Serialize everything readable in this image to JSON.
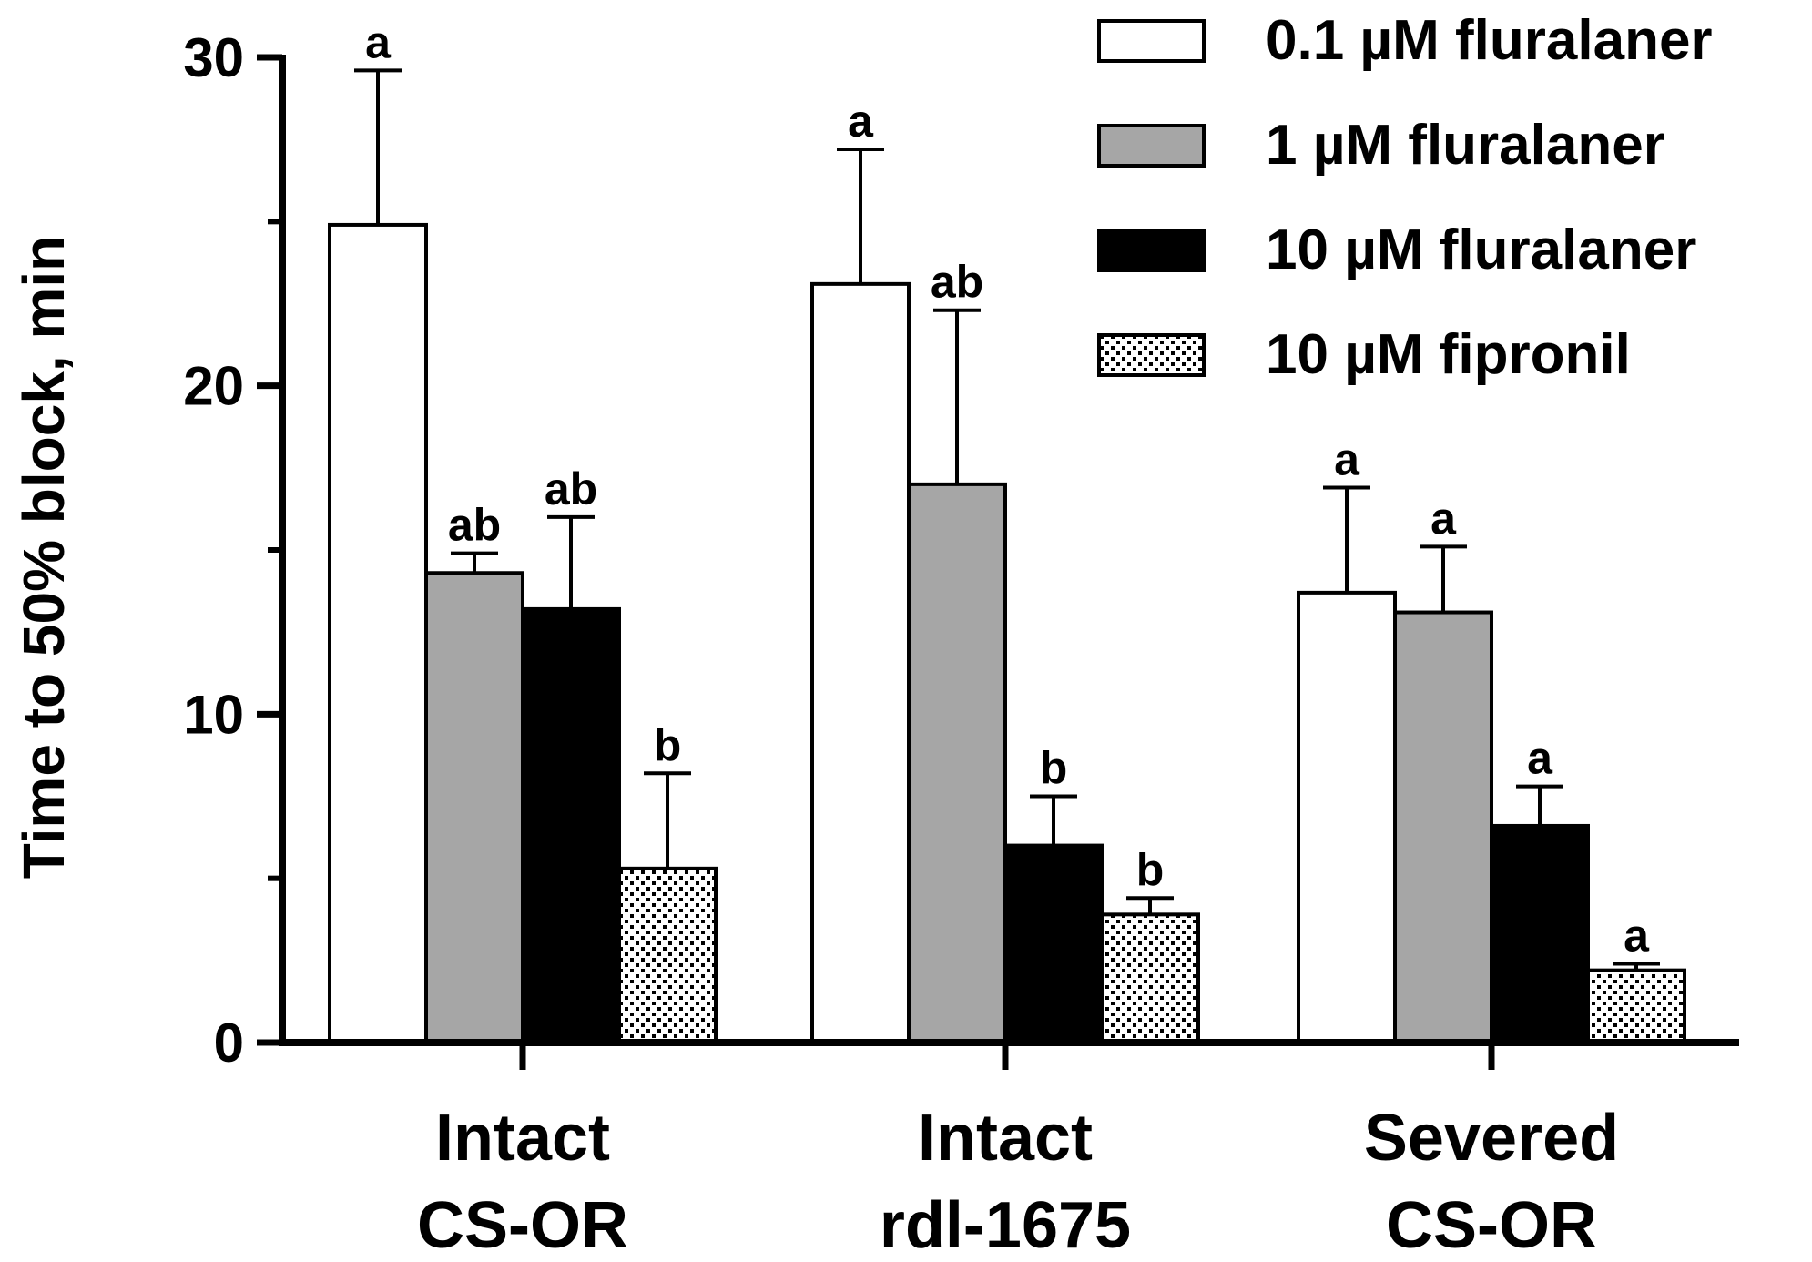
{
  "chart_data": {
    "type": "bar",
    "title": "",
    "xlabel": "",
    "ylabel": "Time to 50% block, min",
    "ylim": [
      0,
      30
    ],
    "yticks": [
      0,
      10,
      20,
      30
    ],
    "minor_yticks": [
      5,
      15,
      25
    ],
    "grid": false,
    "legend_position": "top-right",
    "categories": [
      [
        "Intact",
        "CS-OR"
      ],
      [
        "Intact",
        "rdl-1675"
      ],
      [
        "Severed",
        "CS-OR"
      ]
    ],
    "series": [
      {
        "name": "0.1 µM fluralaner",
        "fill": "#ffffff",
        "pattern": "none",
        "values": [
          24.9,
          23.1,
          13.7
        ],
        "errors": [
          4.7,
          4.1,
          3.2
        ],
        "labels": [
          "a",
          "a",
          "a"
        ]
      },
      {
        "name": "1 µM fluralaner",
        "fill": "#a6a6a6",
        "pattern": "none",
        "values": [
          14.3,
          17.0,
          13.1
        ],
        "errors": [
          0.6,
          5.3,
          2.0
        ],
        "labels": [
          "ab",
          "ab",
          "a"
        ]
      },
      {
        "name": "10 µM fluralaner",
        "fill": "#000000",
        "pattern": "none",
        "values": [
          13.2,
          6.0,
          6.6
        ],
        "errors": [
          2.8,
          1.5,
          1.2
        ],
        "labels": [
          "ab",
          "b",
          "a"
        ]
      },
      {
        "name": "10 µM fipronil",
        "fill": "#ffffff",
        "pattern": "dots",
        "values": [
          5.3,
          3.9,
          2.2
        ],
        "errors": [
          2.9,
          0.5,
          0.2
        ],
        "labels": [
          "b",
          "b",
          "a"
        ]
      }
    ]
  }
}
